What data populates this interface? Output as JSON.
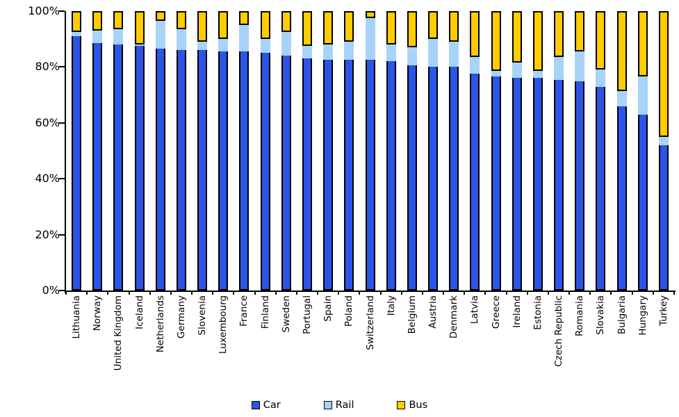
{
  "chart_data": {
    "type": "bar",
    "stacked": true,
    "units": "percent",
    "title": "",
    "xlabel": "",
    "ylabel": "",
    "ylim": [
      0,
      100
    ],
    "ytick_labels": [
      "0%",
      "20%",
      "40%",
      "60%",
      "80%",
      "100%"
    ],
    "grid": false,
    "legend_position": "bottom",
    "categories": [
      "Lithuania",
      "Norway",
      "United Kingdom",
      "Iceland",
      "Netherlands",
      "Germany",
      "Slovenia",
      "Luxembourg",
      "France",
      "Finland",
      "Sweden",
      "Portugal",
      "Spain",
      "Poland",
      "Switzerland",
      "Italy",
      "Belgium",
      "Austria",
      "Denmark",
      "Latvia",
      "Greece",
      "Ireland",
      "Estonia",
      "Czech Republic",
      "Romania",
      "Slovakia",
      "Bulgaria",
      "Hungary",
      "Turkey"
    ],
    "series": [
      {
        "name": "Car",
        "color": "#2b55e8",
        "values": [
          91,
          88.5,
          88,
          87.5,
          86.5,
          86,
          86,
          85.5,
          85.5,
          85,
          84,
          83,
          82.5,
          82.5,
          82.5,
          82,
          80.5,
          80,
          80,
          77.5,
          76.5,
          76,
          76,
          75.5,
          75,
          73,
          66,
          63,
          52
        ]
      },
      {
        "name": "Rail",
        "color": "#a8d3fa",
        "values": [
          1.5,
          4.5,
          5.5,
          0.5,
          10,
          7.5,
          3,
          4.5,
          9.5,
          5,
          8.5,
          4.5,
          5.5,
          6.5,
          15,
          6,
          6.5,
          10,
          9,
          6,
          2,
          5.5,
          2.5,
          8,
          10.5,
          6,
          5.5,
          13.5,
          3
        ]
      },
      {
        "name": "Bus",
        "color": "#ffcc00",
        "values": [
          7.5,
          7,
          6.5,
          12,
          3.5,
          6.5,
          11,
          10,
          5,
          10,
          7.5,
          12.5,
          12,
          11,
          2.5,
          12,
          13,
          10,
          11,
          16.5,
          21.5,
          18.5,
          21.5,
          16.5,
          14.5,
          21,
          28.5,
          23.5,
          45
        ]
      }
    ],
    "axis_color": "#000000",
    "background_color": "#ffffff"
  },
  "legend": {
    "car_label": "Car",
    "rail_label": "Rail",
    "bus_label": "Bus"
  }
}
